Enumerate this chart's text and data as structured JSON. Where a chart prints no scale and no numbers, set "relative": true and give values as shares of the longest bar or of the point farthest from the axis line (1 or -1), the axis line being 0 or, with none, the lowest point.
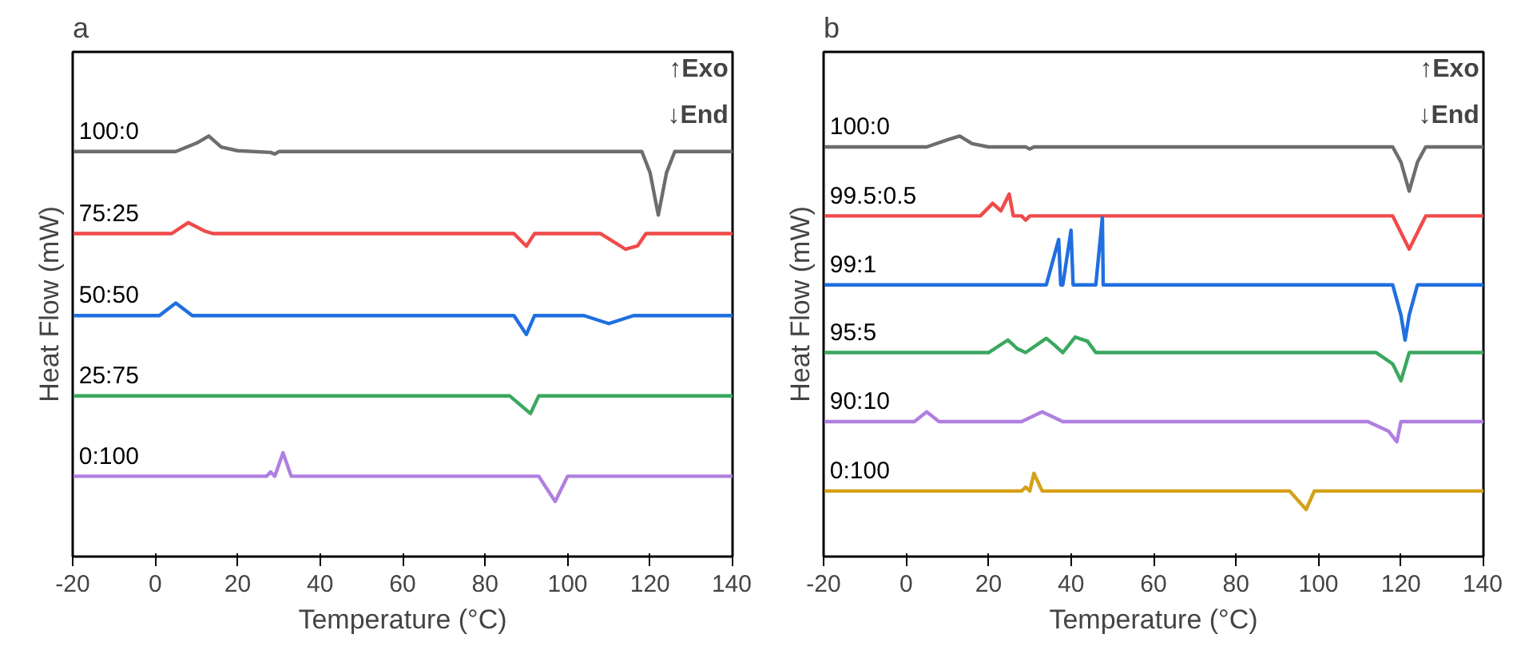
{
  "chart_data": [
    {
      "type": "line",
      "title": "a",
      "xlabel": "Temperature (°C)",
      "ylabel": "Heat Flow (mW)",
      "relative": true,
      "xlim": [
        -20,
        140
      ],
      "xticks": [
        -20,
        0,
        20,
        40,
        60,
        80,
        100,
        120,
        140
      ],
      "grid": false,
      "annotations": [
        "↑Exo",
        "↓End"
      ],
      "series": [
        {
          "name": "100:0",
          "color": "#6d6d6d",
          "x": [
            -20,
            5,
            10,
            13,
            16,
            20,
            28,
            29,
            30,
            118,
            120,
            122,
            124,
            126,
            140
          ],
          "values": [
            0.963,
            0.963,
            0.983,
            1.0,
            0.974,
            0.965,
            0.961,
            0.957,
            0.963,
            0.963,
            0.913,
            0.812,
            0.913,
            0.963,
            0.963
          ]
        },
        {
          "name": "75:25",
          "color": "#f04a4a",
          "x": [
            -20,
            4,
            8,
            12,
            14,
            87,
            90,
            92,
            108,
            114,
            117,
            119,
            140
          ],
          "values": [
            0.768,
            0.768,
            0.794,
            0.774,
            0.768,
            0.768,
            0.738,
            0.768,
            0.768,
            0.731,
            0.739,
            0.768,
            0.768
          ]
        },
        {
          "name": "50:50",
          "color": "#1f6fe0",
          "x": [
            -20,
            1,
            5,
            9,
            87,
            90,
            92,
            104,
            110,
            116,
            140
          ],
          "values": [
            0.573,
            0.573,
            0.603,
            0.573,
            0.573,
            0.528,
            0.573,
            0.573,
            0.554,
            0.573,
            0.573
          ]
        },
        {
          "name": "25:75",
          "color": "#3aa860",
          "x": [
            -20,
            86,
            91,
            93,
            140
          ],
          "values": [
            0.382,
            0.382,
            0.34,
            0.382,
            0.382
          ]
        },
        {
          "name": "0:100",
          "color": "#b07fe0",
          "x": [
            -20,
            27,
            28,
            29,
            31,
            33,
            93,
            97,
            100,
            140
          ],
          "values": [
            0.191,
            0.191,
            0.201,
            0.191,
            0.247,
            0.191,
            0.191,
            0.131,
            0.191,
            0.191
          ]
        }
      ]
    },
    {
      "type": "line",
      "title": "b",
      "xlabel": "Temperature (°C)",
      "ylabel": "Heat Flow (mW)",
      "relative": true,
      "xlim": [
        -20,
        140
      ],
      "xticks": [
        -20,
        0,
        20,
        40,
        60,
        80,
        100,
        120,
        140
      ],
      "grid": false,
      "annotations": [
        "↑Exo",
        "↓End"
      ],
      "series": [
        {
          "name": "100:0",
          "color": "#6d6d6d",
          "x": [
            -20,
            5,
            10,
            13,
            16,
            20,
            29,
            30,
            31,
            118,
            120,
            122,
            124,
            126,
            140
          ],
          "values": [
            0.974,
            0.974,
            0.991,
            1.0,
            0.982,
            0.974,
            0.974,
            0.969,
            0.974,
            0.974,
            0.938,
            0.869,
            0.938,
            0.974,
            0.974
          ]
        },
        {
          "name": "99.5:0.5",
          "color": "#f04a4a",
          "x": [
            -20,
            18,
            21,
            23,
            25,
            26,
            28,
            29,
            30,
            118,
            122,
            126,
            140
          ],
          "values": [
            0.81,
            0.81,
            0.84,
            0.822,
            0.862,
            0.81,
            0.81,
            0.8,
            0.81,
            0.81,
            0.731,
            0.81,
            0.81
          ]
        },
        {
          "name": "99:1",
          "color": "#1f6fe0",
          "x": [
            -20,
            34,
            37,
            37.5,
            38,
            40,
            40.5,
            46,
            47.6,
            47.8,
            118,
            120,
            121,
            122,
            124,
            140
          ],
          "values": [
            0.646,
            0.646,
            0.754,
            0.646,
            0.646,
            0.776,
            0.646,
            0.646,
            0.806,
            0.646,
            0.646,
            0.574,
            0.515,
            0.574,
            0.646,
            0.646
          ]
        },
        {
          "name": "95:5",
          "color": "#3aa860",
          "x": [
            -20,
            20,
            24.7,
            27,
            29,
            34,
            36,
            38,
            41,
            44,
            46,
            114,
            118,
            120,
            122,
            140
          ],
          "values": [
            0.485,
            0.485,
            0.515,
            0.494,
            0.485,
            0.519,
            0.503,
            0.485,
            0.522,
            0.512,
            0.485,
            0.485,
            0.458,
            0.418,
            0.485,
            0.485
          ]
        },
        {
          "name": "90:10",
          "color": "#b07fe0",
          "x": [
            -20,
            2,
            5,
            8,
            28,
            33,
            38,
            112,
            117,
            119,
            120,
            140
          ],
          "values": [
            0.321,
            0.321,
            0.344,
            0.321,
            0.321,
            0.344,
            0.321,
            0.321,
            0.298,
            0.273,
            0.321,
            0.321
          ]
        },
        {
          "name": "0:100",
          "color": "#d4a017",
          "x": [
            -20,
            28,
            29,
            30,
            31,
            33,
            93,
            97,
            99,
            140
          ],
          "values": [
            0.156,
            0.156,
            0.165,
            0.156,
            0.198,
            0.156,
            0.156,
            0.112,
            0.156,
            0.156
          ]
        }
      ]
    }
  ]
}
